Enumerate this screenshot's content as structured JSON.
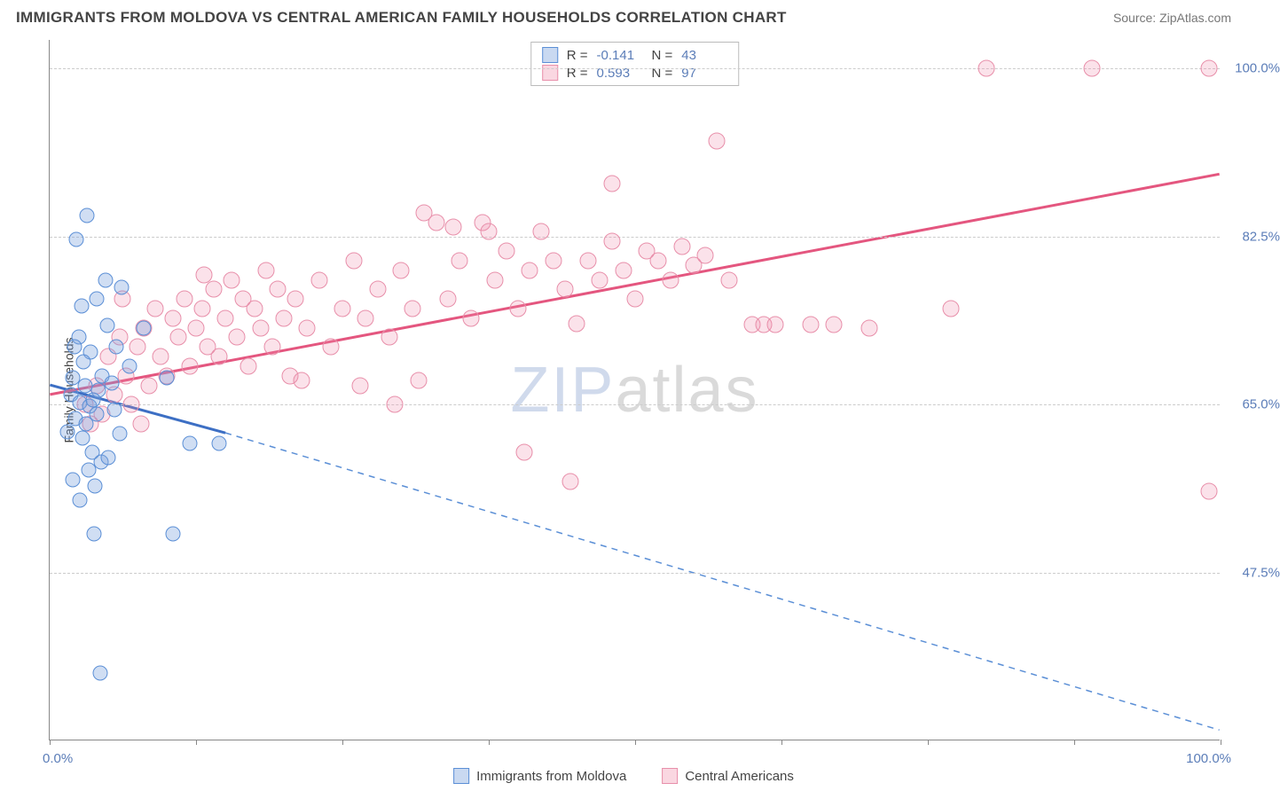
{
  "header": {
    "title": "IMMIGRANTS FROM MOLDOVA VS CENTRAL AMERICAN FAMILY HOUSEHOLDS CORRELATION CHART",
    "source": "Source: ZipAtlas.com"
  },
  "y_axis": {
    "title": "Family Households",
    "ticks": [
      {
        "value": 47.5,
        "label": "47.5%"
      },
      {
        "value": 65.0,
        "label": "65.0%"
      },
      {
        "value": 82.5,
        "label": "82.5%"
      },
      {
        "value": 100.0,
        "label": "100.0%"
      }
    ],
    "min": 30.0,
    "max": 103.0
  },
  "x_axis": {
    "min": 0.0,
    "max": 100.0,
    "label_left": "0.0%",
    "label_right": "100.0%",
    "tick_positions": [
      0,
      12.5,
      25,
      37.5,
      50,
      62.5,
      75,
      87.5,
      100
    ]
  },
  "watermark": {
    "z": "ZIP",
    "rest": "atlas"
  },
  "series": {
    "blue": {
      "label": "Immigrants from Moldova",
      "color_fill": "rgba(120,160,220,0.35)",
      "color_stroke": "#5b8fd6",
      "R": "-0.141",
      "N": "43",
      "trend": {
        "x1": 0.0,
        "y1": 67.0,
        "x2_solid": 15.0,
        "y2_solid": 62.0,
        "x2_dash": 100.0,
        "y2_dash": 31.0
      },
      "points": [
        [
          3.2,
          84.7
        ],
        [
          2.3,
          82.2
        ],
        [
          4.0,
          76.0
        ],
        [
          2.7,
          75.3
        ],
        [
          4.8,
          78.0
        ],
        [
          6.1,
          77.2
        ],
        [
          2.5,
          72.0
        ],
        [
          3.5,
          70.5
        ],
        [
          4.5,
          68.0
        ],
        [
          2.0,
          67.8
        ],
        [
          3.0,
          67.0
        ],
        [
          4.2,
          66.5
        ],
        [
          1.8,
          66.0
        ],
        [
          2.6,
          65.2
        ],
        [
          3.4,
          64.8
        ],
        [
          4.0,
          64.0
        ],
        [
          2.2,
          63.5
        ],
        [
          3.1,
          63.0
        ],
        [
          1.5,
          62.2
        ],
        [
          2.8,
          61.5
        ],
        [
          3.6,
          60.0
        ],
        [
          4.4,
          59.0
        ],
        [
          2.0,
          57.2
        ],
        [
          5.3,
          67.2
        ],
        [
          5.5,
          64.5
        ],
        [
          6.0,
          62.0
        ],
        [
          12.0,
          61.0
        ],
        [
          14.5,
          61.0
        ],
        [
          6.8,
          69.0
        ],
        [
          5.7,
          71.0
        ],
        [
          4.9,
          73.2
        ],
        [
          8.0,
          73.0
        ],
        [
          10.0,
          67.8
        ],
        [
          3.8,
          51.5
        ],
        [
          10.5,
          51.5
        ],
        [
          2.6,
          55.0
        ],
        [
          3.9,
          56.5
        ],
        [
          5.0,
          59.5
        ],
        [
          2.9,
          69.5
        ],
        [
          2.1,
          71.0
        ],
        [
          4.3,
          37.0
        ],
        [
          3.3,
          58.2
        ],
        [
          3.7,
          65.5
        ]
      ]
    },
    "pink": {
      "label": "Central Americans",
      "color_fill": "rgba(240,140,170,0.25)",
      "color_stroke": "#e88faa",
      "R": "0.593",
      "N": "97",
      "trend": {
        "x1": 0.0,
        "y1": 66.0,
        "x2": 100.0,
        "y2": 89.0
      },
      "points": [
        [
          3.0,
          65.0
        ],
        [
          3.5,
          63.0
        ],
        [
          4.0,
          67.0
        ],
        [
          4.5,
          64.0
        ],
        [
          5.0,
          70.0
        ],
        [
          5.5,
          66.0
        ],
        [
          6.0,
          72.0
        ],
        [
          6.5,
          68.0
        ],
        [
          7.0,
          65.0
        ],
        [
          7.5,
          71.0
        ],
        [
          8.0,
          73.0
        ],
        [
          8.5,
          67.0
        ],
        [
          9.0,
          75.0
        ],
        [
          9.5,
          70.0
        ],
        [
          10.0,
          68.0
        ],
        [
          10.5,
          74.0
        ],
        [
          11.0,
          72.0
        ],
        [
          11.5,
          76.0
        ],
        [
          12.0,
          69.0
        ],
        [
          12.5,
          73.0
        ],
        [
          13.0,
          75.0
        ],
        [
          13.5,
          71.0
        ],
        [
          14.0,
          77.0
        ],
        [
          14.5,
          70.0
        ],
        [
          15.0,
          74.0
        ],
        [
          15.5,
          78.0
        ],
        [
          16.0,
          72.0
        ],
        [
          16.5,
          76.0
        ],
        [
          17.0,
          69.0
        ],
        [
          17.5,
          75.0
        ],
        [
          18.0,
          73.0
        ],
        [
          18.5,
          79.0
        ],
        [
          19.0,
          71.0
        ],
        [
          19.5,
          77.0
        ],
        [
          20.0,
          74.0
        ],
        [
          20.5,
          68.0
        ],
        [
          21.0,
          76.0
        ],
        [
          22.0,
          73.0
        ],
        [
          23.0,
          78.0
        ],
        [
          24.0,
          71.0
        ],
        [
          25.0,
          75.0
        ],
        [
          26.0,
          80.0
        ],
        [
          27.0,
          74.0
        ],
        [
          28.0,
          77.0
        ],
        [
          29.0,
          72.0
        ],
        [
          30.0,
          79.0
        ],
        [
          31.0,
          75.0
        ],
        [
          32.0,
          85.0
        ],
        [
          33.0,
          84.0
        ],
        [
          34.0,
          76.0
        ],
        [
          34.5,
          83.5
        ],
        [
          35.0,
          80.0
        ],
        [
          36.0,
          74.0
        ],
        [
          37.0,
          84.0
        ],
        [
          37.5,
          83.0
        ],
        [
          38.0,
          78.0
        ],
        [
          39.0,
          81.0
        ],
        [
          40.0,
          75.0
        ],
        [
          40.5,
          60.0
        ],
        [
          41.0,
          79.0
        ],
        [
          42.0,
          83.0
        ],
        [
          43.0,
          80.0
        ],
        [
          44.0,
          77.0
        ],
        [
          44.5,
          57.0
        ],
        [
          45.0,
          73.4
        ],
        [
          46.0,
          80.0
        ],
        [
          47.0,
          78.0
        ],
        [
          48.0,
          82.0
        ],
        [
          49.0,
          79.0
        ],
        [
          50.0,
          76.0
        ],
        [
          51.0,
          81.0
        ],
        [
          52.0,
          80.0
        ],
        [
          53.0,
          78.0
        ],
        [
          54.0,
          81.5
        ],
        [
          55.0,
          79.5
        ],
        [
          56.0,
          80.5
        ],
        [
          57.0,
          92.5
        ],
        [
          58.0,
          78.0
        ],
        [
          60.0,
          73.3
        ],
        [
          61.0,
          73.3
        ],
        [
          62.0,
          73.3
        ],
        [
          48.0,
          88.0
        ],
        [
          65.0,
          73.3
        ],
        [
          67.0,
          73.3
        ],
        [
          70.0,
          73.0
        ],
        [
          77.0,
          75.0
        ],
        [
          80.0,
          100.0
        ],
        [
          89.0,
          100.0
        ],
        [
          99.0,
          100.0
        ],
        [
          99.0,
          56.0
        ],
        [
          6.2,
          76.0
        ],
        [
          7.8,
          63.0
        ],
        [
          13.2,
          78.5
        ],
        [
          21.5,
          67.5
        ],
        [
          26.5,
          67.0
        ],
        [
          29.5,
          65.0
        ],
        [
          31.5,
          67.5
        ]
      ]
    }
  },
  "stats_legend": {
    "rows": [
      {
        "swatch": "blue",
        "R": "-0.141",
        "N": "43"
      },
      {
        "swatch": "pink",
        "R": "0.593",
        "N": "97"
      }
    ],
    "labels": {
      "r": "R =",
      "n": "N ="
    }
  },
  "bottom_legend": {
    "items": [
      {
        "swatch": "blue",
        "label": "Immigrants from Moldova"
      },
      {
        "swatch": "pink",
        "label": "Central Americans"
      }
    ]
  }
}
